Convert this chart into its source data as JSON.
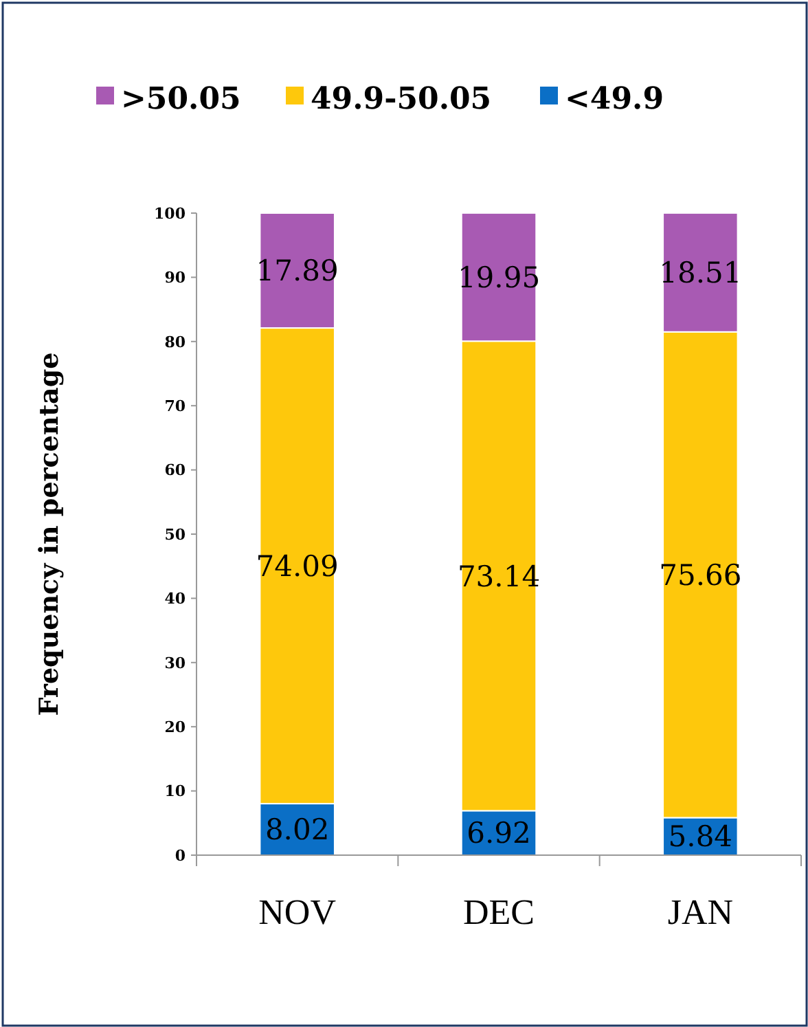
{
  "chart_data": {
    "type": "bar",
    "stacked": true,
    "ylabel": "Frequency in percentage",
    "categories": [
      "NOV",
      "DEC",
      "JAN"
    ],
    "series": [
      {
        "name": "<49.9",
        "color": "#0b6fc6",
        "values": [
          8.02,
          6.92,
          5.84
        ]
      },
      {
        "name": "49.9-50.05",
        "color": "#fec80c",
        "values": [
          74.09,
          73.14,
          75.66
        ]
      },
      {
        "name": ">50.05",
        "color": "#a85ab3",
        "values": [
          17.89,
          19.95,
          18.51
        ]
      }
    ],
    "ylim": [
      0,
      100
    ],
    "yticks": [
      0,
      10,
      20,
      30,
      40,
      50,
      60,
      70,
      80,
      90,
      100
    ],
    "data_labels": true,
    "legend": "top",
    "grid": false
  }
}
